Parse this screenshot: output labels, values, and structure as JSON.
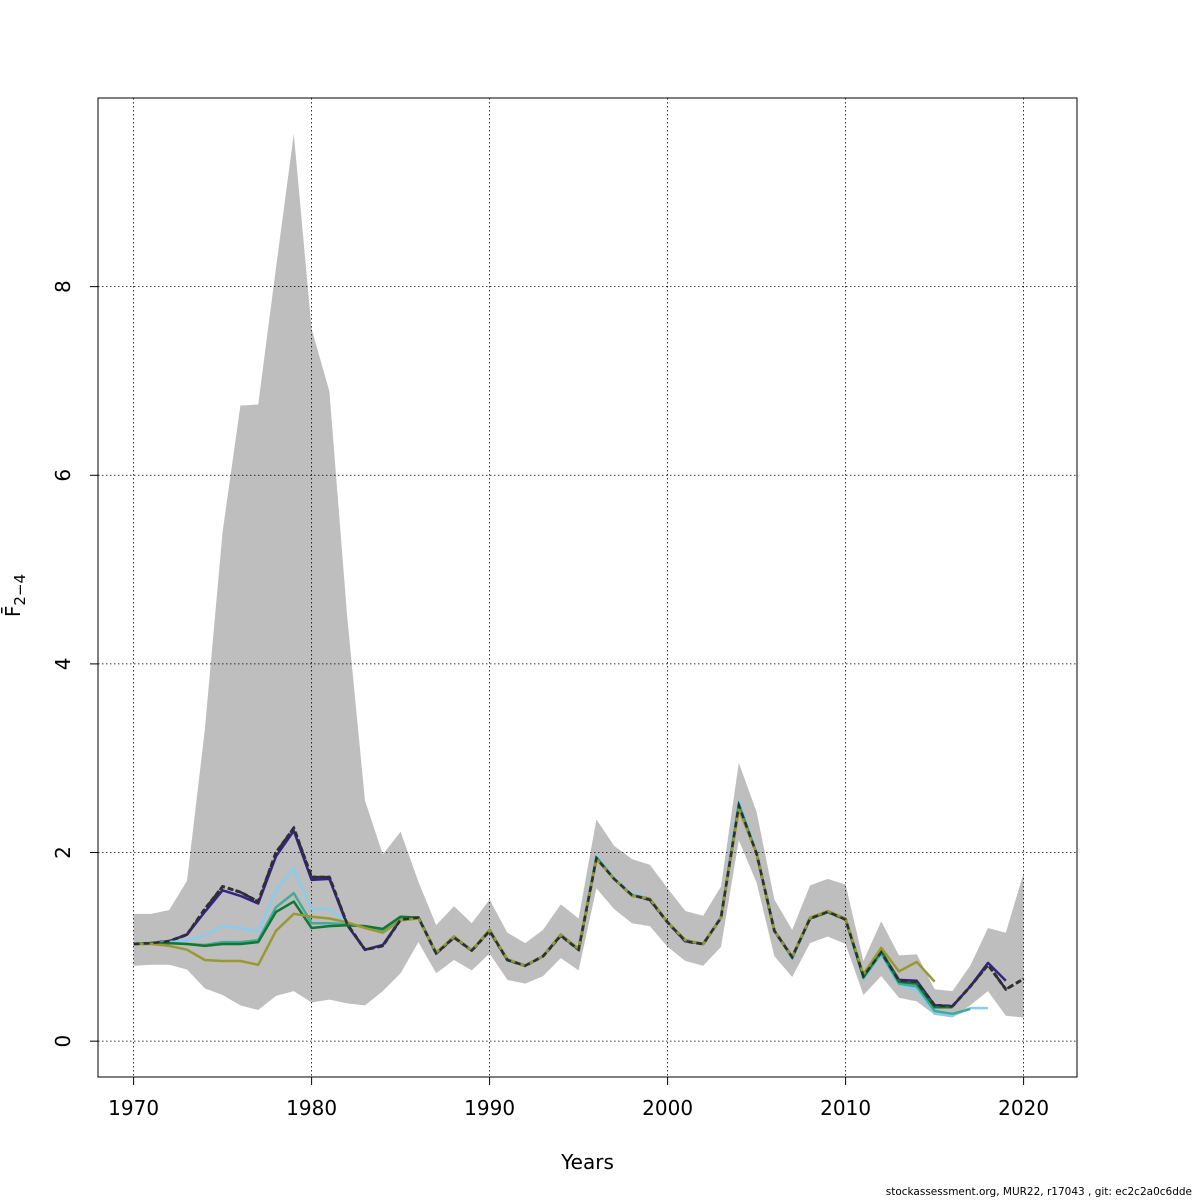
{
  "chart_data": {
    "type": "line",
    "title": "",
    "xlabel": "Years",
    "ylabel": "F̄",
    "ylabel_subscript": "2−4",
    "xlim": [
      1968,
      2023
    ],
    "ylim": [
      -0.38,
      10.0
    ],
    "x_ticks": [
      1970,
      1980,
      1990,
      2000,
      2010,
      2020
    ],
    "y_ticks": [
      0,
      2,
      4,
      6,
      8
    ],
    "grid": true,
    "band": {
      "color": "#bebebe",
      "x": [
        1970,
        1971,
        1972,
        1973,
        1974,
        1975,
        1976,
        1977,
        1978,
        1979,
        1980,
        1981,
        1982,
        1983,
        1984,
        1985,
        1986,
        1987,
        1988,
        1989,
        1990,
        1991,
        1992,
        1993,
        1994,
        1995,
        1996,
        1997,
        1998,
        1999,
        2000,
        2001,
        2002,
        2003,
        2004,
        2005,
        2006,
        2007,
        2008,
        2009,
        2010,
        2011,
        2012,
        2013,
        2014,
        2015,
        2016,
        2017,
        2018,
        2019,
        2020
      ],
      "upper": [
        1.35,
        1.35,
        1.39,
        1.7,
        3.3,
        5.4,
        6.74,
        6.75,
        8.2,
        9.62,
        7.55,
        6.89,
        4.5,
        2.55,
        1.98,
        2.22,
        1.69,
        1.23,
        1.43,
        1.25,
        1.5,
        1.15,
        1.04,
        1.18,
        1.45,
        1.3,
        2.35,
        2.07,
        1.93,
        1.87,
        1.62,
        1.38,
        1.33,
        1.64,
        2.95,
        2.43,
        1.5,
        1.18,
        1.65,
        1.72,
        1.66,
        0.85,
        1.27,
        0.91,
        0.92,
        0.55,
        0.53,
        0.8,
        1.2,
        1.15,
        1.78
      ],
      "lower": [
        0.8,
        0.81,
        0.81,
        0.76,
        0.56,
        0.49,
        0.38,
        0.33,
        0.48,
        0.53,
        0.41,
        0.44,
        0.4,
        0.38,
        0.53,
        0.72,
        1.05,
        0.72,
        0.86,
        0.75,
        0.93,
        0.65,
        0.61,
        0.69,
        0.88,
        0.75,
        1.62,
        1.4,
        1.25,
        1.22,
        1.0,
        0.85,
        0.8,
        1.0,
        2.13,
        1.68,
        0.9,
        0.68,
        1.04,
        1.11,
        1.03,
        0.49,
        0.69,
        0.46,
        0.42,
        0.28,
        0.25,
        0.38,
        0.53,
        0.27,
        0.25
      ]
    },
    "series": [
      {
        "color": "#2f2f2f",
        "dashed": true,
        "x": [
          1970,
          1971,
          1972,
          1973,
          1974,
          1975,
          1976,
          1977,
          1978,
          1979,
          1980,
          1981,
          1982,
          1983,
          1984,
          1985,
          1986,
          1987,
          1988,
          1989,
          1990,
          1991,
          1992,
          1993,
          1994,
          1995,
          1996,
          1997,
          1998,
          1999,
          2000,
          2001,
          2002,
          2003,
          2004,
          2005,
          2006,
          2007,
          2008,
          2009,
          2010,
          2011,
          2012,
          2013,
          2014,
          2015,
          2016,
          2017,
          2018,
          2019,
          2020
        ],
        "y": [
          1.03,
          1.04,
          1.06,
          1.13,
          1.4,
          1.64,
          1.58,
          1.48,
          2.0,
          2.26,
          1.74,
          1.74,
          1.24,
          0.97,
          1.01,
          1.29,
          1.31,
          0.93,
          1.1,
          0.96,
          1.17,
          0.86,
          0.8,
          0.9,
          1.12,
          0.97,
          1.94,
          1.72,
          1.55,
          1.5,
          1.26,
          1.06,
          1.03,
          1.31,
          2.5,
          1.99,
          1.17,
          0.89,
          1.3,
          1.37,
          1.29,
          0.69,
          0.94,
          0.64,
          0.63,
          0.38,
          0.37,
          0.58,
          0.81,
          0.55,
          0.66
        ]
      },
      {
        "color": "#332288",
        "dashed": false,
        "x": [
          1970,
          1971,
          1972,
          1973,
          1974,
          1975,
          1976,
          1977,
          1978,
          1979,
          1980,
          1981,
          1982,
          1983,
          1984,
          1985,
          1986,
          1987,
          1988,
          1989,
          1990,
          1991,
          1992,
          1993,
          1994,
          1995,
          1996,
          1997,
          1998,
          1999,
          2000,
          2001,
          2002,
          2003,
          2004,
          2005,
          2006,
          2007,
          2008,
          2009,
          2010,
          2011,
          2012,
          2013,
          2014,
          2015,
          2016,
          2017,
          2018,
          2019
        ],
        "y": [
          1.03,
          1.04,
          1.06,
          1.13,
          1.37,
          1.6,
          1.54,
          1.46,
          1.96,
          2.23,
          1.71,
          1.72,
          1.23,
          0.97,
          1.02,
          1.29,
          1.31,
          0.93,
          1.1,
          0.96,
          1.17,
          0.86,
          0.8,
          0.9,
          1.12,
          0.97,
          1.94,
          1.72,
          1.55,
          1.5,
          1.26,
          1.06,
          1.03,
          1.31,
          2.52,
          1.99,
          1.17,
          0.89,
          1.3,
          1.37,
          1.29,
          0.69,
          0.95,
          0.65,
          0.64,
          0.38,
          0.37,
          0.58,
          0.83,
          0.64
        ]
      },
      {
        "color": "#88ccee",
        "dashed": false,
        "x": [
          1970,
          1971,
          1972,
          1973,
          1974,
          1975,
          1976,
          1977,
          1978,
          1979,
          1980,
          1981,
          1982,
          1983,
          1984,
          1985,
          1986,
          1987,
          1988,
          1989,
          1990,
          1991,
          1992,
          1993,
          1994,
          1995,
          1996,
          1997,
          1998,
          1999,
          2000,
          2001,
          2002,
          2003,
          2004,
          2005,
          2006,
          2007,
          2008,
          2009,
          2010,
          2011,
          2012,
          2013,
          2014,
          2015,
          2016,
          2017,
          2018
        ],
        "y": [
          1.03,
          1.04,
          1.05,
          1.07,
          1.12,
          1.22,
          1.2,
          1.16,
          1.6,
          1.83,
          1.4,
          1.4,
          1.25,
          1.21,
          1.17,
          1.29,
          1.31,
          0.93,
          1.11,
          0.96,
          1.18,
          0.86,
          0.8,
          0.9,
          1.13,
          0.97,
          1.97,
          1.73,
          1.56,
          1.51,
          1.26,
          1.07,
          1.03,
          1.32,
          2.55,
          2.0,
          1.18,
          0.87,
          1.3,
          1.37,
          1.29,
          0.66,
          0.91,
          0.6,
          0.54,
          0.29,
          0.27,
          0.35,
          0.35
        ]
      },
      {
        "color": "#44aa99",
        "dashed": false,
        "x": [
          1970,
          1971,
          1972,
          1973,
          1974,
          1975,
          1976,
          1977,
          1978,
          1979,
          1980,
          1981,
          1982,
          1983,
          1984,
          1985,
          1986,
          1987,
          1988,
          1989,
          1990,
          1991,
          1992,
          1993,
          1994,
          1995,
          1996,
          1997,
          1998,
          1999,
          2000,
          2001,
          2002,
          2003,
          2004,
          2005,
          2006,
          2007,
          2008,
          2009,
          2010,
          2011,
          2012,
          2013,
          2014,
          2015,
          2016,
          2017
        ],
        "y": [
          1.03,
          1.04,
          1.04,
          1.03,
          1.02,
          1.05,
          1.05,
          1.07,
          1.42,
          1.57,
          1.25,
          1.25,
          1.24,
          1.21,
          1.17,
          1.31,
          1.31,
          0.93,
          1.11,
          0.96,
          1.18,
          0.86,
          0.8,
          0.9,
          1.13,
          0.97,
          1.95,
          1.72,
          1.55,
          1.51,
          1.26,
          1.07,
          1.03,
          1.31,
          2.52,
          1.99,
          1.17,
          0.88,
          1.3,
          1.37,
          1.29,
          0.67,
          0.93,
          0.61,
          0.58,
          0.32,
          0.29,
          0.34
        ]
      },
      {
        "color": "#117733",
        "dashed": false,
        "x": [
          1970,
          1971,
          1972,
          1973,
          1974,
          1975,
          1976,
          1977,
          1978,
          1979,
          1980,
          1981,
          1982,
          1983,
          1984,
          1985,
          1986,
          1987,
          1988,
          1989,
          1990,
          1991,
          1992,
          1993,
          1994,
          1995,
          1996,
          1997,
          1998,
          1999,
          2000,
          2001,
          2002,
          2003,
          2004,
          2005,
          2006,
          2007,
          2008,
          2009,
          2010,
          2011,
          2012,
          2013,
          2014,
          2015,
          2016
        ],
        "y": [
          1.03,
          1.04,
          1.04,
          1.03,
          1.01,
          1.03,
          1.03,
          1.05,
          1.37,
          1.48,
          1.2,
          1.22,
          1.23,
          1.22,
          1.19,
          1.32,
          1.31,
          0.93,
          1.11,
          0.96,
          1.18,
          0.86,
          0.8,
          0.9,
          1.13,
          0.97,
          1.94,
          1.72,
          1.54,
          1.51,
          1.26,
          1.07,
          1.03,
          1.31,
          2.48,
          1.99,
          1.17,
          0.89,
          1.3,
          1.37,
          1.29,
          0.68,
          0.96,
          0.63,
          0.61,
          0.36,
          0.36
        ]
      },
      {
        "color": "#999933",
        "dashed": false,
        "x": [
          1970,
          1971,
          1972,
          1973,
          1974,
          1975,
          1976,
          1977,
          1978,
          1979,
          1980,
          1981,
          1982,
          1983,
          1984,
          1985,
          1986,
          1987,
          1988,
          1989,
          1990,
          1991,
          1992,
          1993,
          1994,
          1995,
          1996,
          1997,
          1998,
          1999,
          2000,
          2001,
          2002,
          2003,
          2004,
          2005,
          2006,
          2007,
          2008,
          2009,
          2010,
          2011,
          2012,
          2013,
          2014,
          2015
        ],
        "y": [
          1.03,
          1.03,
          1.01,
          0.97,
          0.86,
          0.85,
          0.85,
          0.81,
          1.17,
          1.35,
          1.32,
          1.3,
          1.26,
          1.2,
          1.15,
          1.28,
          1.3,
          0.94,
          1.11,
          0.96,
          1.18,
          0.87,
          0.8,
          0.9,
          1.13,
          0.98,
          1.93,
          1.72,
          1.54,
          1.51,
          1.26,
          1.07,
          1.03,
          1.31,
          2.46,
          1.99,
          1.17,
          0.89,
          1.31,
          1.38,
          1.3,
          0.71,
          0.99,
          0.74,
          0.84,
          0.63
        ]
      }
    ]
  },
  "footer": "stockassessment.org, MUR22, r17043 , git: ec2c2a0c6dde"
}
